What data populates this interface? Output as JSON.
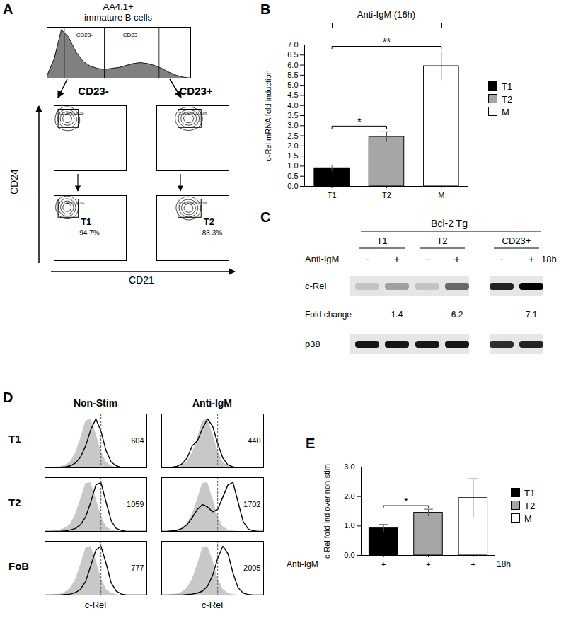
{
  "chart_data": [
    {
      "panel": "A",
      "type": "flow_cytometry",
      "title": [
        "AA4.1+",
        "immature B cells"
      ],
      "histogram": {
        "x": [
          0,
          5,
          10,
          15,
          20,
          25,
          30,
          35,
          40,
          45,
          50,
          55,
          60,
          65,
          70,
          75,
          80,
          85,
          90,
          95,
          100
        ],
        "values": [
          5,
          40,
          100,
          85,
          55,
          35,
          25,
          20,
          18,
          20,
          22,
          26,
          30,
          32,
          30,
          26,
          20,
          12,
          6,
          2,
          0
        ],
        "color": "#808080",
        "xlim": [
          0,
          100
        ],
        "ylim": [
          0,
          105
        ],
        "gates": [
          {
            "label": "CD23-",
            "range": [
              12,
              40
            ]
          },
          {
            "label": "CD23+",
            "range": [
              40,
              78
            ]
          }
        ]
      },
      "xlabel": "CD21",
      "ylabel": "CD24",
      "xlim": [
        0,
        100
      ],
      "ylim": [
        0,
        100
      ],
      "tick_labels": false,
      "plots": [
        {
          "header": "CD23-",
          "gate": {
            "label": "CD24hi/CD21-",
            "x": [
              6,
              34
            ],
            "y": [
              66,
              94
            ]
          },
          "points": [
            [
              14,
              80
            ],
            [
              17,
              83
            ],
            [
              19,
              81
            ],
            [
              16,
              86
            ],
            [
              21,
              79
            ],
            [
              18,
              77
            ],
            [
              15,
              84
            ],
            [
              20,
              85
            ],
            [
              13,
              81
            ],
            [
              23,
              82
            ],
            [
              18,
              88
            ],
            [
              12,
              76
            ],
            [
              22,
              74
            ],
            [
              26,
              70
            ],
            [
              10,
              72
            ],
            [
              28,
              78
            ]
          ]
        },
        {
          "header": "CD23+",
          "gate": {
            "label": "CD24hi/CD21int",
            "x": [
              30,
              62
            ],
            "y": [
              66,
              94
            ]
          },
          "points": [
            [
              38,
              80
            ],
            [
              42,
              83
            ],
            [
              46,
              80
            ],
            [
              40,
              77
            ],
            [
              44,
              86
            ],
            [
              50,
              82
            ],
            [
              36,
              85
            ],
            [
              47,
              76
            ],
            [
              52,
              79
            ],
            [
              41,
              81
            ],
            [
              34,
              82
            ],
            [
              48,
              85
            ],
            [
              56,
              77
            ],
            [
              45,
              72
            ],
            [
              38,
              73
            ],
            [
              54,
              84
            ]
          ]
        },
        {
          "population": "T1",
          "percent": "94.7%",
          "gate": {
            "label": "CD24hi/CD21-",
            "x": [
              6,
              34
            ],
            "y": [
              66,
              94
            ]
          },
          "points": [
            [
              14,
              80
            ],
            [
              17,
              83
            ],
            [
              19,
              81
            ],
            [
              16,
              86
            ],
            [
              21,
              79
            ],
            [
              18,
              77
            ],
            [
              15,
              84
            ],
            [
              20,
              85
            ],
            [
              13,
              81
            ],
            [
              23,
              82
            ],
            [
              18,
              88
            ],
            [
              20,
              74
            ]
          ]
        },
        {
          "population": "T2",
          "percent": "83.3%",
          "gate": {
            "label": "CD24hi/CD21int",
            "x": [
              30,
              62
            ],
            "y": [
              66,
              94
            ]
          },
          "points": [
            [
              38,
              80
            ],
            [
              42,
              83
            ],
            [
              46,
              80
            ],
            [
              40,
              77
            ],
            [
              44,
              86
            ],
            [
              50,
              82
            ],
            [
              36,
              85
            ],
            [
              47,
              76
            ],
            [
              52,
              79
            ],
            [
              41,
              81
            ],
            [
              48,
              85
            ],
            [
              44,
              72
            ]
          ]
        }
      ]
    },
    {
      "panel": "B",
      "type": "bar",
      "title": "Anti-IgM (16h)",
      "categories": [
        "T1",
        "T2",
        "M"
      ],
      "values": [
        0.9,
        2.45,
        5.95
      ],
      "errors": [
        0.15,
        0.25,
        0.7
      ],
      "colors": [
        "#000000",
        "#a6a6a6",
        "#ffffff"
      ],
      "ylabel": "c-Rel mRNA fold induction",
      "ylim": [
        0,
        7
      ],
      "yticks": [
        {
          "value": 0,
          "label": "0.0"
        },
        {
          "value": 0.5,
          "label": "0.5"
        },
        {
          "value": 1,
          "label": "1.0"
        },
        {
          "value": 1.5,
          "label": "1.5"
        },
        {
          "value": 2,
          "label": "2.0"
        },
        {
          "value": 2.5,
          "label": "2.5"
        },
        {
          "value": 3,
          "label": "3.0"
        },
        {
          "value": 3.5,
          "label": "3.5"
        },
        {
          "value": 4,
          "label": "4.0"
        },
        {
          "value": 4.5,
          "label": "4.5"
        },
        {
          "value": 5,
          "label": "5.0"
        },
        {
          "value": 5.5,
          "label": "5.5"
        },
        {
          "value": 6,
          "label": "6.0"
        },
        {
          "value": 6.5,
          "label": "6.5"
        },
        {
          "value": 7,
          "label": "7.0"
        }
      ],
      "significance": [
        {
          "from": "T1",
          "to": "T2",
          "label": "*"
        },
        {
          "from": "T1",
          "to": "M",
          "label": "**"
        }
      ],
      "legend": "right",
      "grid": false
    },
    {
      "panel": "C",
      "type": "western_blot",
      "title": "Bcl-2 Tg",
      "treatment_label": "Anti-IgM",
      "time": "18h",
      "rows": [
        "c-Rel",
        "p38"
      ],
      "fold_change_label": "Fold change",
      "groups": [
        {
          "label": "T1",
          "treatment": [
            "-",
            "+"
          ],
          "bands": [
            [
              0.15,
              0.3
            ],
            [
              0.9,
              0.9
            ]
          ],
          "fold_change": [
            null,
            1.4
          ]
        },
        {
          "label": "T2",
          "treatment": [
            "-",
            "+"
          ],
          "bands": [
            [
              0.15,
              0.55
            ],
            [
              0.9,
              0.9
            ]
          ],
          "fold_change": [
            null,
            6.2
          ]
        },
        {
          "label": "CD23+",
          "treatment": [
            "-",
            "+"
          ],
          "bands": [
            [
              0.85,
              1.0
            ],
            [
              0.8,
              0.85
            ]
          ],
          "fold_change": [
            null,
            7.1
          ]
        }
      ]
    },
    {
      "panel": "D",
      "type": "histogram_overlay",
      "columns": [
        "Non-Stim",
        "Anti-IgM"
      ],
      "xlabel": "c-Rel",
      "x": [
        0,
        5,
        10,
        15,
        20,
        25,
        30,
        35,
        40,
        45,
        50,
        55,
        60,
        65,
        70,
        75,
        80,
        85,
        90,
        95,
        100
      ],
      "xlim": [
        0,
        100
      ],
      "ylim": [
        0,
        110
      ],
      "tick_labels": false,
      "reference_line": 55,
      "control_color": "#c8c8c8",
      "color": "#000000",
      "rows": [
        {
          "label": "T1",
          "control": [
            0,
            0,
            1,
            2,
            5,
            12,
            30,
            60,
            95,
            100,
            70,
            35,
            12,
            4,
            1,
            0,
            0,
            0,
            0,
            0,
            0
          ],
          "series": [
            {
              "values": [
                0,
                0,
                0,
                1,
                2,
                4,
                10,
                22,
                45,
                78,
                100,
                75,
                35,
                12,
                4,
                1,
                0,
                0,
                0,
                0,
                0
              ],
              "mfi": 604
            },
            {
              "values": [
                0,
                0,
                1,
                3,
                8,
                20,
                45,
                55,
                80,
                100,
                85,
                50,
                20,
                6,
                2,
                0,
                0,
                0,
                0,
                0,
                0
              ],
              "mfi": 440
            }
          ]
        },
        {
          "label": "T2",
          "control": [
            0,
            0,
            1,
            3,
            7,
            15,
            35,
            65,
            98,
            100,
            68,
            32,
            10,
            3,
            1,
            0,
            0,
            0,
            0,
            0,
            0
          ],
          "series": [
            {
              "values": [
                0,
                0,
                0,
                0,
                1,
                3,
                6,
                14,
                30,
                60,
                95,
                100,
                60,
                22,
                6,
                2,
                0,
                0,
                0,
                0,
                0
              ],
              "mfi": 1059
            },
            {
              "values": [
                0,
                0,
                1,
                2,
                6,
                14,
                28,
                45,
                55,
                50,
                40,
                45,
                70,
                95,
                100,
                60,
                20,
                5,
                1,
                0,
                0
              ],
              "mfi": 1702
            }
          ]
        },
        {
          "label": "FoB",
          "control": [
            0,
            0,
            1,
            2,
            6,
            14,
            32,
            62,
            96,
            100,
            72,
            36,
            12,
            4,
            1,
            0,
            0,
            0,
            0,
            0,
            0
          ],
          "series": [
            {
              "values": [
                0,
                0,
                0,
                0,
                1,
                2,
                5,
                12,
                28,
                60,
                92,
                100,
                65,
                25,
                8,
                2,
                0,
                0,
                0,
                0,
                0
              ],
              "mfi": 777
            },
            {
              "values": [
                0,
                0,
                0,
                0,
                0,
                1,
                2,
                4,
                8,
                18,
                40,
                75,
                100,
                85,
                45,
                15,
                4,
                1,
                0,
                0,
                0
              ],
              "mfi": 2005
            }
          ]
        }
      ]
    },
    {
      "panel": "E",
      "type": "bar",
      "categories": [
        "T1",
        "T2",
        "M"
      ],
      "values": [
        0.92,
        1.45,
        1.95
      ],
      "errors": [
        0.13,
        0.12,
        0.65
      ],
      "colors": [
        "#000000",
        "#a6a6a6",
        "#ffffff"
      ],
      "tick_texts": [
        "+",
        "+",
        "+"
      ],
      "treatment_label": "Anti-IgM",
      "time": "18h",
      "ylabel": "c-Rel fold ind over non-stim",
      "ylim": [
        0,
        3
      ],
      "yticks": [
        {
          "value": 0,
          "label": "0.0"
        },
        {
          "value": 1,
          "label": "1.0"
        },
        {
          "value": 2,
          "label": "2.0"
        },
        {
          "value": 3,
          "label": "3.0"
        }
      ],
      "significance": [
        {
          "from": "T1",
          "to": "T2",
          "label": "*"
        }
      ],
      "legend": "right",
      "grid": false
    }
  ]
}
